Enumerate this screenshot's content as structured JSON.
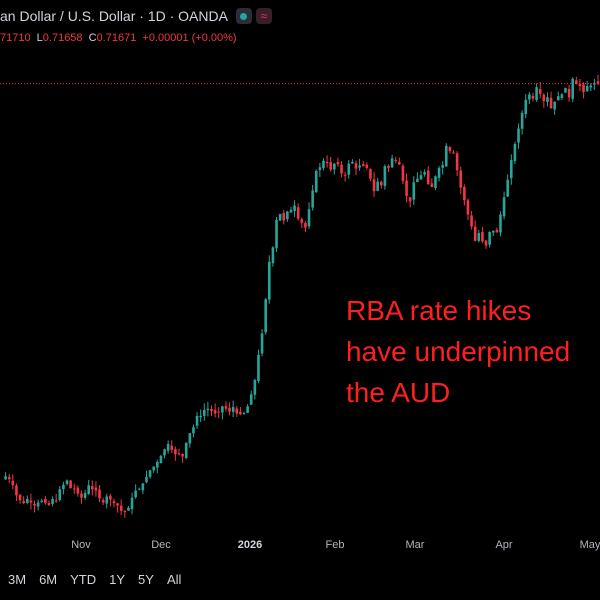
{
  "header": {
    "symbol_title": "an Dollar / U.S. Dollar · 1D · OANDA",
    "ohlc": {
      "high": "71710",
      "low_label": "L",
      "low": "0.71658",
      "close_label": "C",
      "close": "0.71671",
      "change": "+0.00001 (+0.00%)"
    },
    "status_icon": "live-dot-icon",
    "wave_icon": "wave-icon"
  },
  "colors": {
    "up": "#26a69a",
    "down": "#f23645",
    "annotation": "#ff1f1f",
    "background": "#000000"
  },
  "annotation": {
    "line1": "RBA rate hikes",
    "line2": "have underpinned",
    "line3": "the AUD"
  },
  "xaxis": {
    "labels": [
      "Nov",
      "Dec",
      "2026",
      "Feb",
      "Mar",
      "Apr",
      "May"
    ]
  },
  "range_buttons": [
    "3M",
    "6M",
    "YTD",
    "1Y",
    "5Y",
    "All"
  ],
  "chart_data": {
    "type": "candlestick",
    "last_close": 0.71671,
    "reference_line": 0.71671,
    "close_path": [
      0.6505,
      0.651,
      0.6505,
      0.6495,
      0.6478,
      0.647,
      0.6465,
      0.6472,
      0.6466,
      0.6461,
      0.6466,
      0.6469,
      0.6465,
      0.6462,
      0.6472,
      0.6468,
      0.6488,
      0.6496,
      0.6503,
      0.649,
      0.6488,
      0.6481,
      0.6474,
      0.6482,
      0.6495,
      0.6488,
      0.6486,
      0.6473,
      0.6466,
      0.6476,
      0.6471,
      0.6465,
      0.6461,
      0.6452,
      0.645,
      0.6457,
      0.6474,
      0.6486,
      0.6489,
      0.6498,
      0.6509,
      0.652,
      0.6526,
      0.6534,
      0.6544,
      0.6555,
      0.6564,
      0.6554,
      0.6547,
      0.6548,
      0.6543,
      0.6566,
      0.6582,
      0.6592,
      0.6611,
      0.6611,
      0.6621,
      0.6623,
      0.6619,
      0.6615,
      0.6617,
      0.6627,
      0.6623,
      0.6618,
      0.6626,
      0.6615,
      0.6614,
      0.6616,
      0.6627,
      0.6647,
      0.6671,
      0.6713,
      0.6749,
      0.6806,
      0.6869,
      0.6893,
      0.6939,
      0.6949,
      0.6938,
      0.6953,
      0.6956,
      0.6963,
      0.6941,
      0.6934,
      0.6926,
      0.6957,
      0.6988,
      0.7021,
      0.7027,
      0.7038,
      0.7034,
      0.7023,
      0.7033,
      0.7032,
      0.7017,
      0.7013,
      0.7033,
      0.7036,
      0.7025,
      0.703,
      0.7029,
      0.7026,
      0.7008,
      0.6987,
      0.7003,
      0.6997,
      0.7029,
      0.7026,
      0.7042,
      0.7039,
      0.7032,
      0.7004,
      0.6979,
      0.697,
      0.7002,
      0.7008,
      0.7014,
      0.7019,
      0.6999,
      0.6994,
      0.7012,
      0.7026,
      0.7031,
      0.7063,
      0.7054,
      0.7051,
      0.7022,
      0.6993,
      0.6972,
      0.6948,
      0.6928,
      0.6904,
      0.6917,
      0.6903,
      0.6896,
      0.6919,
      0.6921,
      0.6918,
      0.6948,
      0.6977,
      0.7006,
      0.7039,
      0.7066,
      0.7092,
      0.7118,
      0.714,
      0.7149,
      0.7142,
      0.7161,
      0.715,
      0.7138,
      0.7144,
      0.7126,
      0.7137,
      0.7146,
      0.7149,
      0.716,
      0.7144,
      0.7175,
      0.7166,
      0.7163,
      0.7153,
      0.7163,
      0.7164,
      0.7168,
      0.7167
    ]
  }
}
